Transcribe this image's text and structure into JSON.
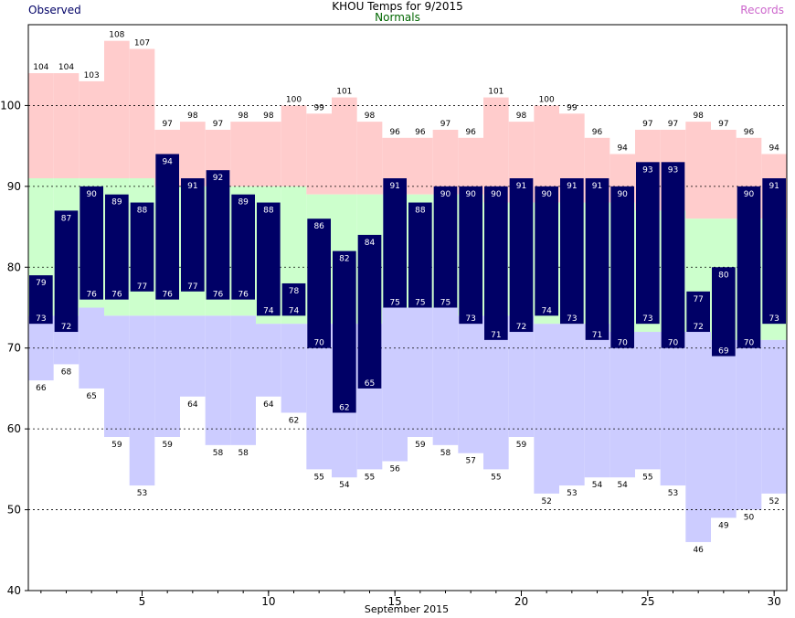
{
  "chart_data": {
    "type": "bar",
    "title": "KHOU Temps for 9/2015",
    "xlabel": "September 2015",
    "ylabel": "",
    "legend": {
      "observed": "Observed",
      "normals": "Normals",
      "records": "Records"
    },
    "colors": {
      "observed": "#000066",
      "normals_text": "#006600",
      "records_text": "#cc66cc",
      "record_band": "#ffcccc",
      "normal_band": "#ccffcc",
      "low_band": "#ccccff",
      "grid": "#000000"
    },
    "ylim": [
      40,
      110
    ],
    "yticks": [
      40,
      50,
      60,
      70,
      80,
      90,
      100
    ],
    "xlim": [
      0.5,
      30.5
    ],
    "xticks": [
      5,
      10,
      15,
      20,
      25,
      30
    ],
    "grid": "dashed horizontal",
    "days": [
      1,
      2,
      3,
      4,
      5,
      6,
      7,
      8,
      9,
      10,
      11,
      12,
      13,
      14,
      15,
      16,
      17,
      18,
      19,
      20,
      21,
      22,
      23,
      24,
      25,
      26,
      27,
      28,
      29,
      30
    ],
    "series": [
      {
        "name": "Record High",
        "values": [
          104,
          104,
          103,
          108,
          107,
          97,
          98,
          97,
          98,
          98,
          100,
          99,
          101,
          98,
          96,
          96,
          97,
          96,
          101,
          98,
          100,
          99,
          96,
          94,
          97,
          97,
          98,
          97,
          96,
          94
        ]
      },
      {
        "name": "Normal High",
        "values": [
          91,
          91,
          91,
          91,
          91,
          90,
          90,
          90,
          90,
          90,
          90,
          89,
          89,
          89,
          89,
          89,
          89,
          89,
          88,
          88,
          88,
          88,
          88,
          88,
          87,
          87,
          86,
          86,
          86,
          86
        ]
      },
      {
        "name": "Normal Low",
        "values": [
          74,
          74,
          75,
          74,
          74,
          74,
          74,
          74,
          74,
          73,
          73,
          73,
          73,
          73,
          75,
          75,
          75,
          74,
          74,
          74,
          73,
          73,
          73,
          72,
          72,
          72,
          72,
          71,
          71,
          71
        ]
      },
      {
        "name": "Record Low",
        "values": [
          66,
          68,
          65,
          59,
          53,
          59,
          64,
          58,
          58,
          64,
          62,
          55,
          54,
          55,
          56,
          59,
          58,
          57,
          55,
          59,
          52,
          53,
          54,
          54,
          55,
          53,
          46,
          49,
          50,
          52
        ]
      },
      {
        "name": "Observed High",
        "values": [
          79,
          87,
          90,
          89,
          88,
          94,
          91,
          92,
          89,
          88,
          78,
          86,
          82,
          84,
          91,
          88,
          90,
          90,
          90,
          91,
          90,
          91,
          91,
          90,
          93,
          93,
          77,
          80,
          90,
          91
        ]
      },
      {
        "name": "Observed Low",
        "values": [
          73,
          72,
          76,
          76,
          77,
          76,
          77,
          76,
          76,
          74,
          74,
          70,
          62,
          65,
          75,
          75,
          75,
          73,
          71,
          72,
          74,
          73,
          71,
          70,
          73,
          70,
          72,
          69,
          70,
          73
        ]
      }
    ]
  }
}
